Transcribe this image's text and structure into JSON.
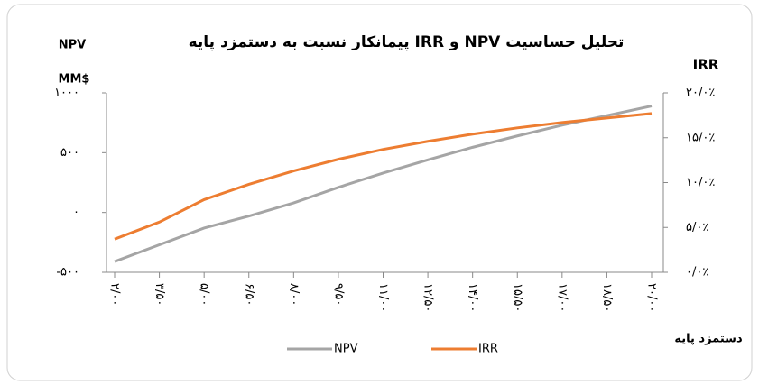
{
  "chart_data": {
    "type": "line",
    "title": "تحلیل حساسیت NPV و IRR پیمانکار نسبت به دستمزد پایه",
    "y_label": [
      "NPV",
      "MM$"
    ],
    "y2_label": "IRR",
    "x_label": "دستمزد پایه",
    "x": [
      2,
      3.5,
      5,
      6.5,
      8,
      9.5,
      11,
      12.5,
      14,
      15.5,
      17,
      18.5,
      20
    ],
    "xlim": [
      2,
      20
    ],
    "xticks": [
      {
        "value": 2,
        "label": "۲/۰۰"
      },
      {
        "value": 3.5,
        "label": "۳/۵۰"
      },
      {
        "value": 5,
        "label": "۵/۰۰"
      },
      {
        "value": 6.5,
        "label": "۶/۵۰"
      },
      {
        "value": 8,
        "label": "۸/۰۰"
      },
      {
        "value": 9.5,
        "label": "۹/۵۰"
      },
      {
        "value": 11,
        "label": "۱۱/۰۰"
      },
      {
        "value": 12.5,
        "label": "۱۲/۵۰"
      },
      {
        "value": 14,
        "label": "۱۴/۰۰"
      },
      {
        "value": 15.5,
        "label": "۱۵/۵۰"
      },
      {
        "value": 17,
        "label": "۱۷/۰۰"
      },
      {
        "value": 18.5,
        "label": "۱۸/۵۰"
      },
      {
        "value": 20,
        "label": "۲۰/۰۰"
      }
    ],
    "ylim": [
      -500,
      1000
    ],
    "yticks": [
      {
        "value": -500,
        "label": "-۵۰۰"
      },
      {
        "value": 0,
        "label": "۰"
      },
      {
        "value": 500,
        "label": "۵۰۰"
      },
      {
        "value": 1000,
        "label": "۱۰۰۰"
      }
    ],
    "y2lim": [
      0,
      20
    ],
    "y2ticks": [
      {
        "value": 0,
        "label": "۰/۰٪"
      },
      {
        "value": 5,
        "label": "۵/۰٪"
      },
      {
        "value": 10,
        "label": "۱۰/۰٪"
      },
      {
        "value": 15,
        "label": "۱۵/۰٪"
      },
      {
        "value": 20,
        "label": "۲۰/۰٪"
      }
    ],
    "series": [
      {
        "name": "NPV",
        "color": "#a5a5a5",
        "values": [
          -410,
          -270,
          -130,
          -30,
          80,
          210,
          330,
          440,
          545,
          640,
          730,
          810,
          890
        ]
      },
      {
        "name": "IRR",
        "color": "#ed7d31",
        "axis": "y2",
        "values": [
          3.7,
          5.6,
          8.1,
          9.8,
          11.3,
          12.6,
          13.7,
          14.6,
          15.4,
          16.1,
          16.7,
          17.2,
          17.7
        ]
      }
    ]
  }
}
